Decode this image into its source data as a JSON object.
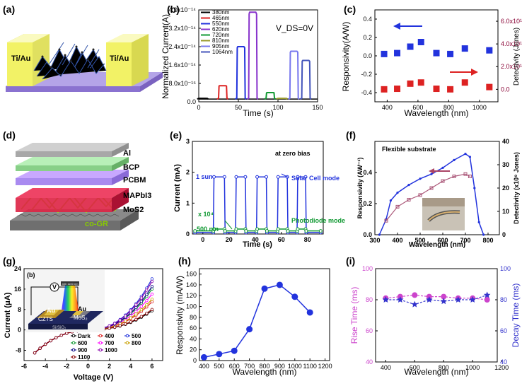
{
  "panel_labels": [
    "(a)",
    "(b)",
    "(c)",
    "(d)",
    "(e)",
    "(f)",
    "(g)",
    "(h)",
    "(i)"
  ],
  "diagram_a": {
    "contact_left": "Ti/Au",
    "contact_right": "Ti/Au"
  },
  "diagram_d": {
    "layers": [
      "Al",
      "BCP",
      "PCBM",
      "MAPbI3",
      "MoS2",
      "co-GR"
    ]
  },
  "colors": {
    "blue": "#2233dd",
    "red": "#dd2222",
    "green": "#119933",
    "purple": "#8833cc",
    "magenta": "#cc44cc",
    "olive": "#99992a",
    "black": "#000000"
  },
  "chart_data": [
    {
      "id": "b",
      "type": "line",
      "xlabel": "Time (s)",
      "ylabel": "Normalized Current(A)",
      "xlim": [
        0,
        150
      ],
      "ylim": [
        0,
        4e-14
      ],
      "xticks": [
        "0",
        "50",
        "100",
        "150"
      ],
      "yticks": [
        "0.0",
        "8.0x10⁻¹⁵",
        "1.6x10⁻¹⁴",
        "2.4x10⁻¹⁴",
        "3.2x10⁻¹⁴",
        "4.0x10⁻¹⁴"
      ],
      "annotation": "V_DS=0V",
      "baseline": 1.5e-15,
      "series": [
        {
          "name": "380nm",
          "color": "#000000",
          "on": [
            0,
            10
          ],
          "peak": 1.5e-15
        },
        {
          "name": "465nm",
          "color": "#dd2222",
          "on": [
            25,
            35
          ],
          "peak": 7e-15
        },
        {
          "name": "550nm",
          "color": "#2233dd",
          "on": [
            48,
            58
          ],
          "peak": 2.4e-14
        },
        {
          "name": "620nm",
          "color": "#8833cc",
          "on": [
            63,
            73
          ],
          "peak": 3.9e-14
        },
        {
          "name": "720nm",
          "color": "#119933",
          "on": [
            85,
            95
          ],
          "peak": 4e-15
        },
        {
          "name": "810nm",
          "color": "#99992a",
          "on": [
            100,
            110
          ],
          "peak": 1.5e-15
        },
        {
          "name": "905nm",
          "color": "#7777ee",
          "on": [
            115,
            125
          ],
          "peak": 2.2e-14
        },
        {
          "name": "1064nm",
          "color": "#4455bb",
          "on": [
            130,
            140
          ],
          "peak": 1.8e-14
        }
      ]
    },
    {
      "id": "c",
      "type": "scatter",
      "xlabel": "Wavelength (nm)",
      "ylabel": "Responsivity(A/W)",
      "y2label": "Detectivity (Jones)",
      "xlim": [
        320,
        1120
      ],
      "ylim": [
        -0.5,
        0.5
      ],
      "y2lim": [
        -1100000000000.0,
        7000000000000.0
      ],
      "xticks": [
        "400",
        "600",
        "800",
        "1000"
      ],
      "yticks": [
        "-0.4",
        "-0.2",
        "0.0",
        "0.2",
        "0.4"
      ],
      "y2ticks": [
        "0.0",
        "2.0x10¹²",
        "4.0x10¹²",
        "6.0x10¹²"
      ],
      "series": [
        {
          "name": "Responsivity",
          "axis": "left",
          "color": "#2233dd",
          "x": [
            380,
            465,
            550,
            620,
            720,
            810,
            905,
            1064
          ],
          "y": [
            0.02,
            0.03,
            0.1,
            0.15,
            0.03,
            0.02,
            0.08,
            0.06
          ]
        },
        {
          "name": "Detectivity",
          "axis": "right",
          "color": "#dd2222",
          "x": [
            380,
            465,
            550,
            620,
            720,
            810,
            905,
            1064
          ],
          "y": [
            0.0,
            50000000000.0,
            500000000000.0,
            600000000000.0,
            50000000000.0,
            0.0,
            600000000000.0,
            200000000000.0
          ]
        }
      ]
    },
    {
      "id": "e",
      "type": "line",
      "xlabel": "Time (s)",
      "ylabel": "Current (mA)",
      "xlim": [
        -8,
        92
      ],
      "ylim": [
        0,
        3
      ],
      "xticks": [
        "0",
        "20",
        "40",
        "60",
        "80"
      ],
      "yticks": [
        "0",
        "1",
        "2",
        "3"
      ],
      "annotations": [
        "at zero bias",
        "1 sun",
        "x 10⁴",
        "500 nm",
        "Solar Cell mode",
        "Photodiode mode"
      ],
      "series": [
        {
          "name": "Solar Cell mode",
          "color": "#2233dd",
          "on_level": 1.85,
          "off_level": 0.05,
          "pulses": [
            [
              8,
              17
            ],
            [
              25,
              33
            ],
            [
              41,
              49
            ],
            [
              57,
              65
            ],
            [
              72,
              79
            ]
          ]
        },
        {
          "name": "Photodiode mode",
          "color": "#119933",
          "on_level": 0.16,
          "off_level": 0.1,
          "pulses": [
            [
              8,
              17
            ],
            [
              25,
              33
            ],
            [
              41,
              49
            ],
            [
              57,
              65
            ],
            [
              72,
              79
            ]
          ]
        }
      ]
    },
    {
      "id": "f",
      "type": "line",
      "xlabel": "Wavelength (nm)",
      "ylabel": "Responsivity (AW⁻¹)",
      "y2label": "Detectivity (x10⁹ Jones)",
      "annotation": "Flexible substrate",
      "xlim": [
        300,
        850
      ],
      "ylim": [
        0,
        0.6
      ],
      "y2lim": [
        0,
        40
      ],
      "xticks": [
        "300",
        "400",
        "500",
        "600",
        "700",
        "800"
      ],
      "yticks": [
        "0.0",
        "0.2",
        "0.4"
      ],
      "y2ticks": [
        "0",
        "10",
        "20",
        "30",
        "40"
      ],
      "series": [
        {
          "name": "Responsivity",
          "axis": "left",
          "color": "#2233dd",
          "x": [
            320,
            350,
            370,
            400,
            450,
            500,
            550,
            600,
            650,
            700,
            720,
            740,
            760,
            780
          ],
          "y": [
            0.0,
            0.1,
            0.22,
            0.27,
            0.32,
            0.36,
            0.39,
            0.43,
            0.48,
            0.52,
            0.5,
            0.3,
            0.08,
            0.0
          ]
        },
        {
          "name": "Detectivity",
          "axis": "right",
          "color": "#aa5577",
          "x": [
            350,
            400,
            450,
            500,
            550,
            600,
            650,
            700,
            720
          ],
          "y": [
            6,
            12,
            15,
            17,
            20,
            23,
            25,
            26,
            25
          ]
        }
      ]
    },
    {
      "id": "g",
      "type": "line",
      "xlabel": "Voltage (V)",
      "ylabel": "Current (μA)",
      "xlim": [
        -6,
        7
      ],
      "ylim": [
        -12,
        24
      ],
      "xticks": [
        "-6",
        "-4",
        "-2",
        "0",
        "2",
        "4",
        "6"
      ],
      "yticks": [
        "-8",
        "0",
        "8",
        "16",
        "24"
      ],
      "inset_labels": [
        "(b)",
        "V",
        "400 1100 nm",
        "Au",
        "Au",
        "CZTS",
        "MoS₂",
        "Si/SiO₂"
      ],
      "series": [
        {
          "name": "Dark",
          "color": "#000000",
          "ymax": 7.5
        },
        {
          "name": "400",
          "color": "#dd2222",
          "ymax": 11
        },
        {
          "name": "500",
          "color": "#2233dd",
          "ymax": 20
        },
        {
          "name": "600",
          "color": "#119933",
          "ymax": 16
        },
        {
          "name": "700",
          "color": "#ff00ff",
          "ymax": 14
        },
        {
          "name": "800",
          "color": "#c8a000",
          "ymax": 12
        },
        {
          "name": "900",
          "color": "#000080",
          "ymax": 17
        },
        {
          "name": "1000",
          "color": "#8800aa",
          "ymax": 19
        },
        {
          "name": "1100",
          "color": "#880000",
          "ymax": 8
        }
      ]
    },
    {
      "id": "h",
      "type": "line",
      "xlabel": "Wavelength (nm)",
      "ylabel": "Responsivity (mA/W)",
      "xlim": [
        370,
        1230
      ],
      "ylim": [
        0,
        170
      ],
      "xticks": [
        "400",
        "500",
        "600",
        "700",
        "800",
        "900",
        "1000",
        "1100",
        "1200"
      ],
      "yticks": [
        "0",
        "20",
        "40",
        "60",
        "80",
        "100",
        "120",
        "140",
        "160"
      ],
      "series": [
        {
          "name": "Responsivity",
          "color": "#2233dd",
          "x": [
            400,
            500,
            600,
            700,
            800,
            900,
            1000,
            1100
          ],
          "y": [
            6,
            12,
            18,
            58,
            133,
            140,
            118,
            89
          ]
        }
      ]
    },
    {
      "id": "i",
      "type": "scatter",
      "xlabel": "Wavelength (nm)",
      "ylabel": "Rise Time (ms)",
      "y2label": "Decay Time (ms)",
      "xlim": [
        330,
        1170
      ],
      "ylim": [
        40,
        100
      ],
      "y2lim": [
        40,
        100
      ],
      "xticks": [
        "400",
        "600",
        "800",
        "1000",
        "1200"
      ],
      "yticks": [
        "40",
        "60",
        "80",
        "100"
      ],
      "y2ticks": [
        "40",
        "60",
        "80",
        "100"
      ],
      "series": [
        {
          "name": "Rise Time",
          "axis": "left",
          "color": "#cc44cc",
          "marker": "circle",
          "x": [
            400,
            500,
            600,
            700,
            800,
            900,
            1000,
            1100
          ],
          "y": [
            81,
            82,
            83,
            82,
            82,
            81,
            81,
            80
          ]
        },
        {
          "name": "Decay Time",
          "axis": "right",
          "color": "#3333cc",
          "marker": "star",
          "x": [
            400,
            500,
            600,
            700,
            800,
            900,
            1000,
            1100
          ],
          "y": [
            80,
            80,
            77,
            80,
            79,
            80,
            80,
            83
          ]
        }
      ]
    }
  ]
}
